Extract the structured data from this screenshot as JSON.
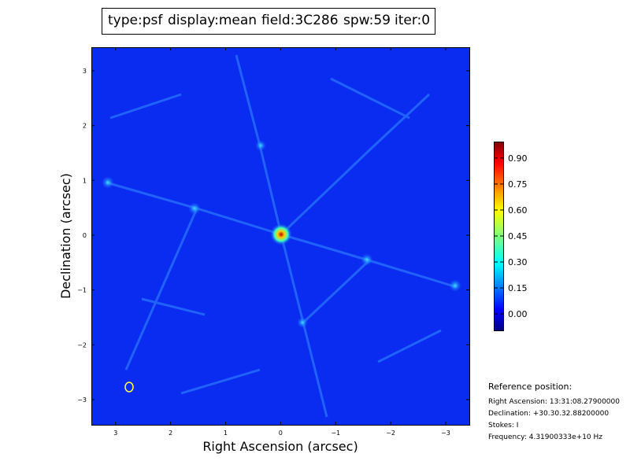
{
  "chart_data": {
    "type": "image",
    "title_parts": [
      {
        "text": "type:psf",
        "color": "#000000"
      },
      {
        "text": "display:mean",
        "color": "#ff0000"
      },
      {
        "text": "field:3C286",
        "color": "#000000"
      },
      {
        "text": "spw:59",
        "color": "#000000"
      },
      {
        "text": "iter:0",
        "color": "#000000"
      }
    ],
    "xlabel": "Right Ascension (arcsec)",
    "ylabel": "Declination (arcsec)",
    "xlim": [
      3.44,
      -3.43
    ],
    "ylim": [
      -3.46,
      3.43
    ],
    "xticks": [
      3,
      2,
      1,
      0,
      {
        "value": -1,
        "label": "−1"
      },
      {
        "value": -2,
        "label": "−2"
      },
      {
        "value": -3,
        "label": "−3"
      }
    ],
    "yticks": [
      3,
      2,
      1,
      0,
      {
        "value": -1,
        "label": "−1"
      },
      {
        "value": -2,
        "label": "−2"
      },
      {
        "value": -3,
        "label": "−3"
      }
    ],
    "colorbar": {
      "colormap": "jet",
      "clim": [
        -0.095,
        0.995
      ],
      "ticks": [
        {
          "value": 0.9,
          "label": "0.90"
        },
        {
          "value": 0.75,
          "label": "0.75"
        },
        {
          "value": 0.6,
          "label": "0.60"
        },
        {
          "value": 0.45,
          "label": "0.45"
        },
        {
          "value": 0.3,
          "label": "0.30"
        },
        {
          "value": 0.15,
          "label": "0.15"
        },
        {
          "value": 0,
          "label": "0.00"
        }
      ]
    },
    "reference": {
      "heading": "Reference position:",
      "lines": [
        "Right Ascension: 13:31:08.27900000",
        "Declination: +30.30.32.88200000",
        "Stokes: I",
        "Frequency: 4.31900333e+10 Hz"
      ]
    }
  }
}
